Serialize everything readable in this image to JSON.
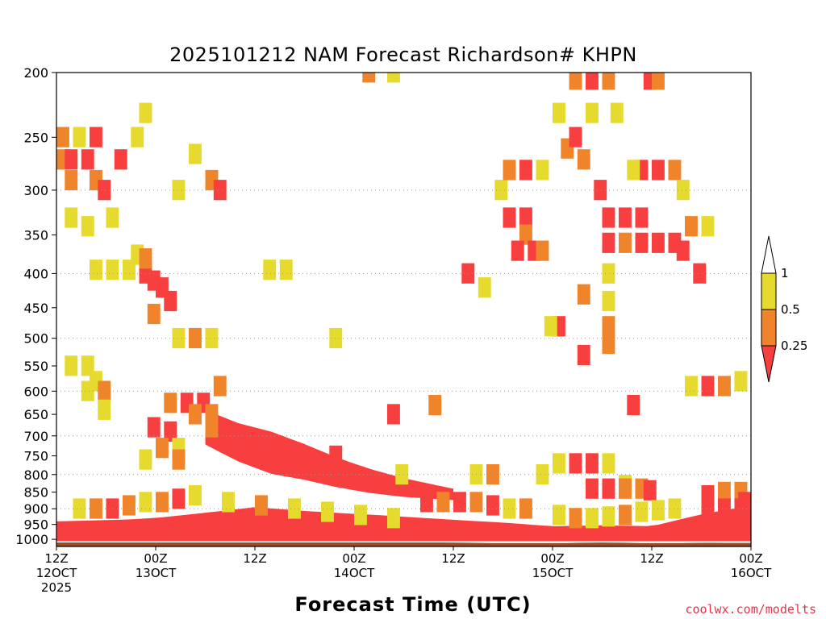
{
  "chart_data": {
    "type": "heatmap",
    "title": "2025101212 NAM Forecast Richardson# KHPN",
    "xlabel": "Forecast Time (UTC)",
    "ylabel": "",
    "credit": "coolwx.com/modelts",
    "x_ticks": [
      {
        "hour": 0,
        "line1": "12Z",
        "line2": "12OCT",
        "line3": "2025"
      },
      {
        "hour": 12,
        "line1": "00Z",
        "line2": "13OCT",
        "line3": ""
      },
      {
        "hour": 24,
        "line1": "12Z",
        "line2": "",
        "line3": ""
      },
      {
        "hour": 36,
        "line1": "00Z",
        "line2": "14OCT",
        "line3": ""
      },
      {
        "hour": 48,
        "line1": "12Z",
        "line2": "",
        "line3": ""
      },
      {
        "hour": 60,
        "line1": "00Z",
        "line2": "15OCT",
        "line3": ""
      },
      {
        "hour": 72,
        "line1": "12Z",
        "line2": "",
        "line3": ""
      },
      {
        "hour": 84,
        "line1": "00Z",
        "line2": "16OCT",
        "line3": ""
      }
    ],
    "xlim": [
      0,
      84
    ],
    "y_ticks": [
      "200",
      "250",
      "300",
      "350",
      "400",
      "450",
      "500",
      "550",
      "600",
      "650",
      "700",
      "750",
      "800",
      "850",
      "900",
      "950",
      "1000"
    ],
    "ylim": [
      1025,
      200
    ],
    "y_scale": "log-pressure",
    "gridlines_at": [
      300,
      400,
      500,
      600,
      700,
      800,
      900
    ],
    "legend": {
      "labels": [
        "1",
        "0.5",
        "0.25"
      ],
      "colors": {
        "above_1": "#ffffff",
        "half_to_1": "#e6da2e",
        "quarter_to_half": "#f0842b",
        "below_quarter": "#f83f3f"
      },
      "placement": "right"
    },
    "ground_color": "#9c4c22",
    "categories": [
      "lt_0.25",
      "0.25_to_0.5",
      "0.5_to_1"
    ],
    "bands": [
      {
        "category": "lt_0.25",
        "points": [
          [
            0,
            1000
          ],
          [
            8,
            998
          ],
          [
            12,
            994
          ],
          [
            18,
            990
          ],
          [
            24,
            985
          ],
          [
            30,
            987
          ],
          [
            36,
            990
          ],
          [
            42,
            992
          ],
          [
            48,
            993
          ],
          [
            54,
            993
          ],
          [
            60,
            996
          ],
          [
            66,
            998
          ],
          [
            72,
            996
          ],
          [
            76,
            990
          ],
          [
            80,
            985
          ],
          [
            84,
            980
          ]
        ],
        "thickness": [
          [
            0,
            60
          ],
          [
            12,
            65
          ],
          [
            24,
            90
          ],
          [
            30,
            80
          ],
          [
            40,
            70
          ],
          [
            50,
            55
          ],
          [
            60,
            40
          ],
          [
            66,
            45
          ],
          [
            72,
            40
          ],
          [
            78,
            70
          ],
          [
            84,
            90
          ]
        ]
      },
      {
        "category": "lt_0.25",
        "points": [
          [
            18,
            700
          ],
          [
            22,
            740
          ],
          [
            26,
            770
          ],
          [
            30,
            790
          ],
          [
            34,
            815
          ],
          [
            38,
            835
          ],
          [
            42,
            850
          ],
          [
            46,
            860
          ],
          [
            48,
            865
          ]
        ],
        "thickness": [
          [
            18,
            60
          ],
          [
            26,
            80
          ],
          [
            34,
            60
          ],
          [
            42,
            40
          ],
          [
            48,
            25
          ]
        ]
      }
    ],
    "cells": [
      [
        0,
        250,
        "0.25_to_0.5"
      ],
      [
        0,
        270,
        "0.25_to_0.5"
      ],
      [
        1,
        270,
        "lt_0.25"
      ],
      [
        1,
        290,
        "0.25_to_0.5"
      ],
      [
        2,
        250,
        "0.5_to_1"
      ],
      [
        3,
        270,
        "lt_0.25"
      ],
      [
        4,
        250,
        "lt_0.25"
      ],
      [
        4,
        290,
        "0.25_to_0.5"
      ],
      [
        5,
        300,
        "lt_0.25"
      ],
      [
        6,
        330,
        "0.5_to_1"
      ],
      [
        7,
        270,
        "lt_0.25"
      ],
      [
        9,
        250,
        "0.5_to_1"
      ],
      [
        10,
        230,
        "0.5_to_1"
      ],
      [
        14,
        300,
        "0.5_to_1"
      ],
      [
        16,
        265,
        "0.5_to_1"
      ],
      [
        18,
        290,
        "0.25_to_0.5"
      ],
      [
        19,
        300,
        "lt_0.25"
      ],
      [
        1,
        330,
        "0.5_to_1"
      ],
      [
        3,
        340,
        "0.5_to_1"
      ],
      [
        4,
        395,
        "0.5_to_1"
      ],
      [
        6,
        395,
        "0.5_to_1"
      ],
      [
        8,
        395,
        "0.5_to_1"
      ],
      [
        9,
        375,
        "0.5_to_1"
      ],
      [
        10,
        400,
        "lt_0.25"
      ],
      [
        10,
        380,
        "0.25_to_0.5"
      ],
      [
        11,
        410,
        "lt_0.25"
      ],
      [
        12,
        420,
        "lt_0.25"
      ],
      [
        13,
        440,
        "lt_0.25"
      ],
      [
        11,
        460,
        "0.25_to_0.5"
      ],
      [
        25,
        395,
        "0.5_to_1"
      ],
      [
        27,
        395,
        "0.5_to_1"
      ],
      [
        33,
        500,
        "0.5_to_1"
      ],
      [
        37,
        200,
        "0.25_to_0.5"
      ],
      [
        40,
        200,
        "0.5_to_1"
      ],
      [
        1,
        550,
        "0.5_to_1"
      ],
      [
        3,
        550,
        "0.5_to_1"
      ],
      [
        4,
        580,
        "0.5_to_1"
      ],
      [
        5,
        600,
        "0.25_to_0.5"
      ],
      [
        3,
        600,
        "0.5_to_1"
      ],
      [
        5,
        640,
        "0.5_to_1"
      ],
      [
        13,
        625,
        "0.25_to_0.5"
      ],
      [
        15,
        625,
        "lt_0.25"
      ],
      [
        17,
        625,
        "lt_0.25"
      ],
      [
        16,
        650,
        "0.25_to_0.5"
      ],
      [
        18,
        650,
        "0.25_to_0.5"
      ],
      [
        18,
        680,
        "0.25_to_0.5"
      ],
      [
        19,
        590,
        "0.25_to_0.5"
      ],
      [
        11,
        680,
        "lt_0.25"
      ],
      [
        13,
        690,
        "lt_0.25"
      ],
      [
        12,
        730,
        "0.25_to_0.5"
      ],
      [
        14,
        730,
        "0.5_to_1"
      ],
      [
        10,
        760,
        "0.5_to_1"
      ],
      [
        14,
        760,
        "0.25_to_0.5"
      ],
      [
        14,
        500,
        "0.5_to_1"
      ],
      [
        16,
        500,
        "0.25_to_0.5"
      ],
      [
        18,
        500,
        "0.5_to_1"
      ],
      [
        49,
        400,
        "lt_0.25"
      ],
      [
        51,
        420,
        "0.5_to_1"
      ],
      [
        53,
        300,
        "0.5_to_1"
      ],
      [
        54,
        330,
        "lt_0.25"
      ],
      [
        56,
        330,
        "lt_0.25"
      ],
      [
        56,
        350,
        "0.25_to_0.5"
      ],
      [
        55,
        370,
        "lt_0.25"
      ],
      [
        57,
        370,
        "lt_0.25"
      ],
      [
        58,
        370,
        "0.25_to_0.5"
      ],
      [
        54,
        280,
        "0.25_to_0.5"
      ],
      [
        56,
        280,
        "lt_0.25"
      ],
      [
        58,
        280,
        "0.5_to_1"
      ],
      [
        60,
        230,
        "0.5_to_1"
      ],
      [
        61,
        260,
        "0.25_to_0.5"
      ],
      [
        62,
        250,
        "lt_0.25"
      ],
      [
        63,
        270,
        "0.25_to_0.5"
      ],
      [
        62,
        205,
        "0.25_to_0.5"
      ],
      [
        64,
        205,
        "lt_0.25"
      ],
      [
        66,
        205,
        "0.25_to_0.5"
      ],
      [
        71,
        205,
        "lt_0.25"
      ],
      [
        72,
        205,
        "0.25_to_0.5"
      ],
      [
        64,
        230,
        "0.5_to_1"
      ],
      [
        67,
        230,
        "0.5_to_1"
      ],
      [
        65,
        300,
        "lt_0.25"
      ],
      [
        66,
        330,
        "lt_0.25"
      ],
      [
        68,
        330,
        "lt_0.25"
      ],
      [
        70,
        330,
        "lt_0.25"
      ],
      [
        66,
        360,
        "lt_0.25"
      ],
      [
        68,
        360,
        "0.25_to_0.5"
      ],
      [
        70,
        360,
        "lt_0.25"
      ],
      [
        72,
        360,
        "lt_0.25"
      ],
      [
        74,
        360,
        "lt_0.25"
      ],
      [
        70,
        280,
        "lt_0.25"
      ],
      [
        72,
        280,
        "lt_0.25"
      ],
      [
        74,
        280,
        "0.25_to_0.5"
      ],
      [
        69,
        280,
        "0.5_to_1"
      ],
      [
        75,
        300,
        "0.5_to_1"
      ],
      [
        76,
        340,
        "0.25_to_0.5"
      ],
      [
        78,
        340,
        "0.5_to_1"
      ],
      [
        75,
        370,
        "lt_0.25"
      ],
      [
        77,
        400,
        "lt_0.25"
      ],
      [
        66,
        400,
        "0.5_to_1"
      ],
      [
        66,
        440,
        "0.5_to_1"
      ],
      [
        66,
        480,
        "0.25_to_0.5"
      ],
      [
        66,
        510,
        "0.25_to_0.5"
      ],
      [
        63,
        530,
        "lt_0.25"
      ],
      [
        60,
        480,
        "lt_0.25"
      ],
      [
        59,
        480,
        "0.5_to_1"
      ],
      [
        63,
        430,
        "0.25_to_0.5"
      ],
      [
        76,
        590,
        "0.5_to_1"
      ],
      [
        78,
        590,
        "lt_0.25"
      ],
      [
        80,
        590,
        "0.25_to_0.5"
      ],
      [
        82,
        580,
        "0.5_to_1"
      ],
      [
        69,
        630,
        "lt_0.25"
      ],
      [
        45,
        630,
        "0.25_to_0.5"
      ],
      [
        40,
        650,
        "lt_0.25"
      ],
      [
        33,
        750,
        "lt_0.25"
      ],
      [
        41,
        800,
        "0.5_to_1"
      ],
      [
        50,
        800,
        "0.5_to_1"
      ],
      [
        52,
        800,
        "0.25_to_0.5"
      ],
      [
        58,
        800,
        "0.5_to_1"
      ],
      [
        60,
        770,
        "0.5_to_1"
      ],
      [
        62,
        770,
        "lt_0.25"
      ],
      [
        64,
        770,
        "lt_0.25"
      ],
      [
        66,
        770,
        "0.5_to_1"
      ],
      [
        68,
        830,
        "0.5_to_1"
      ],
      [
        64,
        840,
        "lt_0.25"
      ],
      [
        66,
        840,
        "lt_0.25"
      ],
      [
        68,
        840,
        "0.25_to_0.5"
      ],
      [
        70,
        840,
        "0.25_to_0.5"
      ],
      [
        71,
        845,
        "lt_0.25"
      ],
      [
        78,
        860,
        "lt_0.25"
      ],
      [
        80,
        850,
        "0.25_to_0.5"
      ],
      [
        82,
        850,
        "0.25_to_0.5"
      ],
      [
        78,
        890,
        "lt_0.25"
      ],
      [
        80,
        900,
        "lt_0.25"
      ],
      [
        82,
        900,
        "lt_0.25"
      ],
      [
        84,
        880,
        "lt_0.25"
      ],
      [
        78,
        930,
        "lt_0.25"
      ],
      [
        82,
        930,
        "lt_0.25"
      ],
      [
        44,
        880,
        "lt_0.25"
      ],
      [
        46,
        880,
        "0.25_to_0.5"
      ],
      [
        48,
        880,
        "lt_0.25"
      ],
      [
        50,
        880,
        "0.25_to_0.5"
      ],
      [
        52,
        890,
        "lt_0.25"
      ],
      [
        54,
        900,
        "0.5_to_1"
      ],
      [
        56,
        900,
        "0.25_to_0.5"
      ],
      [
        2,
        900,
        "0.5_to_1"
      ],
      [
        4,
        900,
        "0.25_to_0.5"
      ],
      [
        6,
        900,
        "lt_0.25"
      ],
      [
        8,
        890,
        "0.25_to_0.5"
      ],
      [
        10,
        880,
        "0.5_to_1"
      ],
      [
        12,
        880,
        "0.25_to_0.5"
      ],
      [
        14,
        870,
        "lt_0.25"
      ],
      [
        16,
        860,
        "0.5_to_1"
      ],
      [
        20,
        880,
        "0.5_to_1"
      ],
      [
        24,
        890,
        "0.25_to_0.5"
      ],
      [
        28,
        900,
        "0.5_to_1"
      ],
      [
        32,
        910,
        "0.5_to_1"
      ],
      [
        36,
        920,
        "0.5_to_1"
      ],
      [
        40,
        930,
        "0.5_to_1"
      ],
      [
        60,
        920,
        "0.5_to_1"
      ],
      [
        62,
        930,
        "0.25_to_0.5"
      ],
      [
        64,
        930,
        "0.5_to_1"
      ],
      [
        66,
        925,
        "0.5_to_1"
      ],
      [
        68,
        920,
        "0.25_to_0.5"
      ],
      [
        70,
        910,
        "0.5_to_1"
      ],
      [
        72,
        905,
        "0.5_to_1"
      ],
      [
        74,
        900,
        "0.5_to_1"
      ]
    ]
  }
}
